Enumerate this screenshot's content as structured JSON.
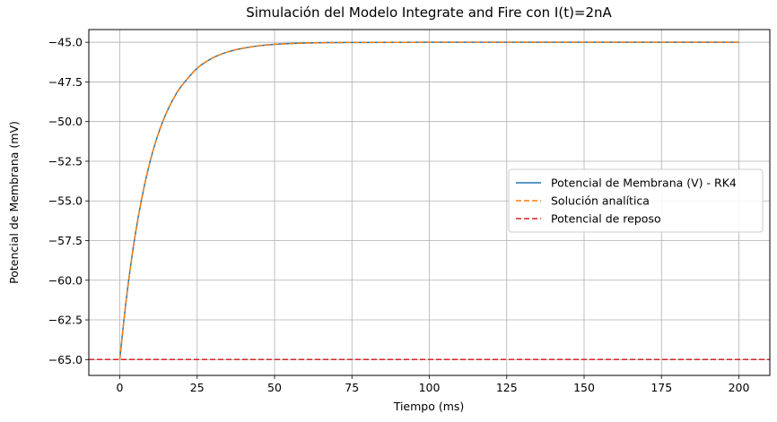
{
  "chart_data": {
    "type": "line",
    "title": "Simulación del Modelo Integrate and Fire con I(t)=2nA",
    "xlabel": "Tiempo (ms)",
    "ylabel": "Potencial de Membrana (mV)",
    "xlim": [
      -10,
      210
    ],
    "ylim": [
      -66,
      -44.2
    ],
    "x_ticks": [
      0,
      25,
      50,
      75,
      100,
      125,
      150,
      175,
      200
    ],
    "x_tick_labels": [
      "0",
      "25",
      "50",
      "75",
      "100",
      "125",
      "150",
      "175",
      "200"
    ],
    "y_ticks": [
      -65.0,
      -62.5,
      -60.0,
      -57.5,
      -55.0,
      -52.5,
      -50.0,
      -47.5,
      -45.0
    ],
    "y_tick_labels": [
      "−65.0",
      "−62.5",
      "−60.0",
      "−57.5",
      "−55.0",
      "−52.5",
      "−50.0",
      "−47.5",
      "−45.0"
    ],
    "grid": true,
    "legend_position": "center-right",
    "series": [
      {
        "name": "Potencial de Membrana (V) - RK4",
        "style": "solid",
        "color": "#1f77b4",
        "x": [
          0,
          2,
          4,
          6,
          8,
          10,
          12,
          14,
          16,
          18,
          20,
          25,
          30,
          35,
          40,
          45,
          50,
          60,
          70,
          80,
          100,
          125,
          150,
          175,
          200
        ],
        "y": [
          -65.0,
          -61.37,
          -58.4,
          -55.98,
          -53.99,
          -52.36,
          -51.03,
          -49.94,
          -49.06,
          -48.33,
          -47.74,
          -46.64,
          -45.99,
          -45.6,
          -45.37,
          -45.22,
          -45.13,
          -45.05,
          -45.02,
          -45.01,
          -45.0,
          -45.0,
          -45.0,
          -45.0,
          -45.0
        ]
      },
      {
        "name": "Solución analítica",
        "style": "dashed",
        "color": "#ff7f0e",
        "x": [
          0,
          2,
          4,
          6,
          8,
          10,
          12,
          14,
          16,
          18,
          20,
          25,
          30,
          35,
          40,
          45,
          50,
          60,
          70,
          80,
          100,
          125,
          150,
          175,
          200
        ],
        "y": [
          -65.0,
          -61.37,
          -58.4,
          -55.98,
          -53.99,
          -52.36,
          -51.03,
          -49.94,
          -49.06,
          -48.33,
          -47.74,
          -46.64,
          -45.99,
          -45.6,
          -45.37,
          -45.22,
          -45.13,
          -45.05,
          -45.02,
          -45.01,
          -45.0,
          -45.0,
          -45.0,
          -45.0,
          -45.0
        ]
      },
      {
        "name": "Potencial de reposo",
        "style": "dashed",
        "color": "#d62728",
        "type": "hline",
        "y": -65.0
      }
    ]
  }
}
